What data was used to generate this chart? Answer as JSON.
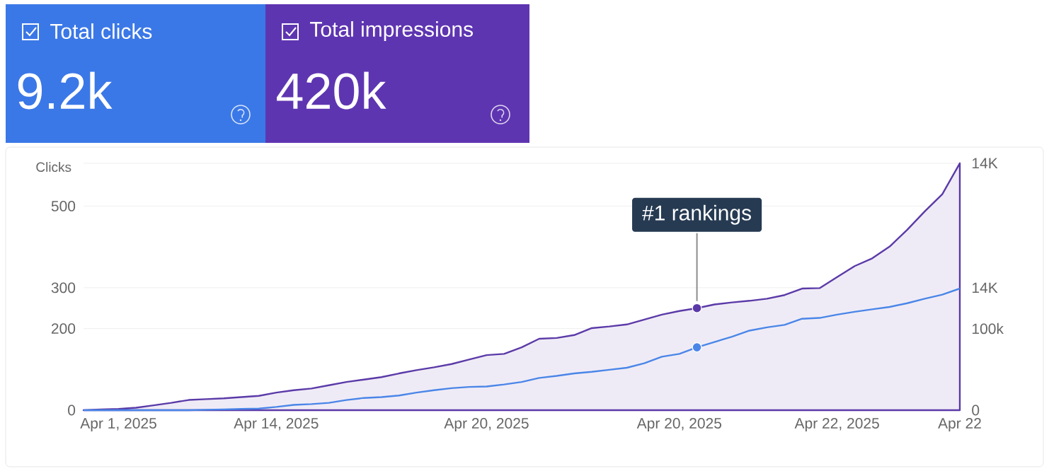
{
  "chart_data": [
    {
      "type": "other",
      "annotations": [
        "Total clicks",
        "9.2k",
        "Total impressions",
        "420k"
      ]
    },
    {
      "type": "line",
      "ylabel": "Clicks",
      "ylim": [
        0,
        605
      ],
      "grid": "y",
      "categories": [
        null,
        null,
        "Apr 1, 2025",
        null,
        null,
        null,
        null,
        null,
        null,
        null,
        null,
        "Apr 14, 2025",
        null,
        null,
        null,
        null,
        null,
        null,
        null,
        null,
        null,
        null,
        null,
        "Apr 20, 2025",
        null,
        null,
        null,
        null,
        null,
        null,
        null,
        null,
        null,
        null,
        "Apr 20, 2025",
        null,
        null,
        null,
        null,
        null,
        null,
        null,
        null,
        "Apr 22, 2025",
        null,
        null,
        null,
        null,
        null,
        null,
        "Apr 22"
      ],
      "yticks": [
        0,
        200,
        300,
        500,
        {
          "value": 605,
          "label": null
        }
      ],
      "series": [
        {
          "type": "area",
          "color": "#5b3aa8",
          "values": [
            0,
            2,
            3,
            6,
            12,
            18,
            25,
            27,
            29,
            32,
            35,
            43,
            49,
            53,
            61,
            69,
            75,
            81,
            90,
            98,
            105,
            113,
            124,
            135,
            138,
            154,
            175,
            177,
            184,
            201,
            205,
            210,
            222,
            234,
            243,
            250,
            259,
            264,
            268,
            273,
            282,
            298,
            299,
            326,
            353,
            372,
            401,
            442,
            487,
            529,
            605
          ]
        },
        {
          "type": "line",
          "color": "#4a86e8",
          "values": [
            0,
            0,
            0,
            0,
            0,
            0,
            0,
            1,
            2,
            3,
            4,
            8,
            13,
            15,
            18,
            25,
            30,
            32,
            36,
            43,
            49,
            54,
            57,
            58,
            63,
            69,
            79,
            84,
            90,
            94,
            99,
            104,
            115,
            131,
            138,
            154,
            167,
            180,
            195,
            203,
            209,
            224,
            226,
            234,
            241,
            247,
            253,
            262,
            273,
            283,
            298
          ]
        },
        {
          "type": "scatter",
          "color": "#5b3aa8",
          "values": [
            null,
            null,
            null,
            null,
            null,
            null,
            null,
            null,
            null,
            null,
            null,
            null,
            null,
            null,
            null,
            null,
            null,
            null,
            null,
            null,
            null,
            null,
            null,
            null,
            null,
            null,
            null,
            null,
            null,
            null,
            null,
            null,
            null,
            null,
            null,
            250,
            null,
            null,
            null,
            null,
            null,
            null,
            null,
            null,
            null,
            null,
            null,
            null,
            null,
            null,
            null
          ]
        },
        {
          "type": "scatter",
          "color": "#4a86e8",
          "values": [
            null,
            null,
            null,
            null,
            null,
            null,
            null,
            null,
            null,
            null,
            null,
            null,
            null,
            null,
            null,
            null,
            null,
            null,
            null,
            null,
            null,
            null,
            null,
            null,
            null,
            null,
            null,
            null,
            null,
            null,
            null,
            null,
            null,
            null,
            null,
            154,
            null,
            null,
            null,
            null,
            null,
            null,
            null,
            null,
            null,
            null,
            null,
            null,
            null,
            null,
            null
          ]
        }
      ],
      "annotations": [
        {
          "text": "#1 rankings",
          "y": 250
        },
        "0",
        "100k",
        "14K",
        "14K"
      ]
    }
  ]
}
